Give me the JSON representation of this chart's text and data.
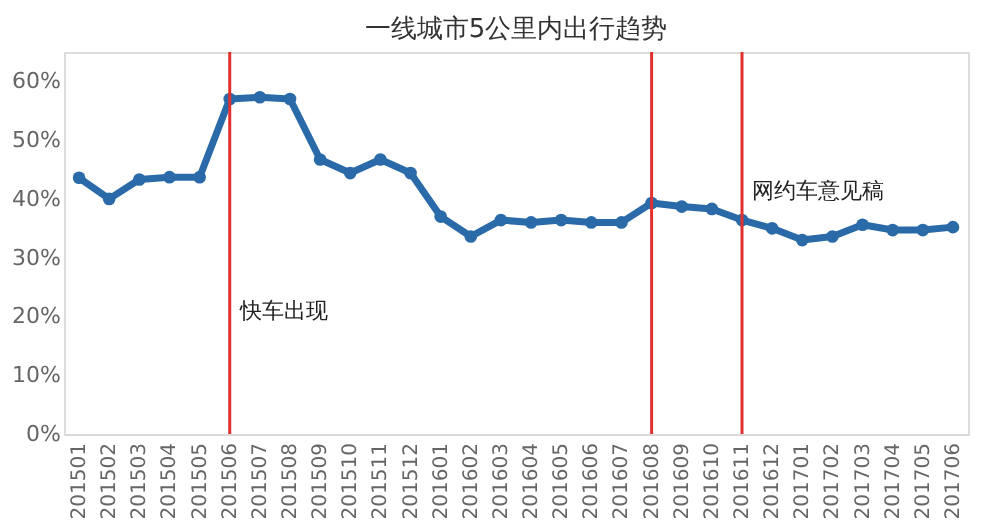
{
  "chart_data": {
    "type": "line",
    "title": "一线城市5公里内出行趋势",
    "categories": [
      "201501",
      "201502",
      "201503",
      "201504",
      "201505",
      "201506",
      "201507",
      "201508",
      "201509",
      "201510",
      "201511",
      "201512",
      "201601",
      "201602",
      "201603",
      "201604",
      "201605",
      "201606",
      "201607",
      "201608",
      "201609",
      "201610",
      "201611",
      "201612",
      "201701",
      "201702",
      "201703",
      "201704",
      "201705",
      "201706"
    ],
    "series": [
      {
        "color": "#2a6aa8",
        "values": [
          43.6,
          40,
          43.3,
          43.7,
          43.7,
          57,
          57.3,
          57,
          46.7,
          44.4,
          46.7,
          44.4,
          37,
          33.6,
          36.4,
          36,
          36.4,
          36,
          36,
          39.3,
          38.7,
          38.3,
          36.4,
          35,
          33,
          33.6,
          35.6,
          34.7,
          34.7,
          35.2
        ]
      }
    ],
    "ylim": [
      0,
      65
    ],
    "yticks": [
      {
        "value": 0,
        "label": "0%"
      },
      {
        "value": 10,
        "label": "10%"
      },
      {
        "value": 20,
        "label": "20%"
      },
      {
        "value": 30,
        "label": "30%"
      },
      {
        "value": 40,
        "label": "40%"
      },
      {
        "value": 50,
        "label": "50%"
      },
      {
        "value": 60,
        "label": "60%"
      }
    ],
    "ref_lines": [
      {
        "axis": "x",
        "value": "201506",
        "label": "快车出现",
        "color": "#e03030"
      },
      {
        "axis": "x",
        "value": "201608",
        "color": "#e03030"
      },
      {
        "axis": "x",
        "value": "201611",
        "label": "网约车意见稿",
        "color": "#e03030"
      }
    ],
    "marker": "circle",
    "line_style": "solid",
    "grid": false
  }
}
